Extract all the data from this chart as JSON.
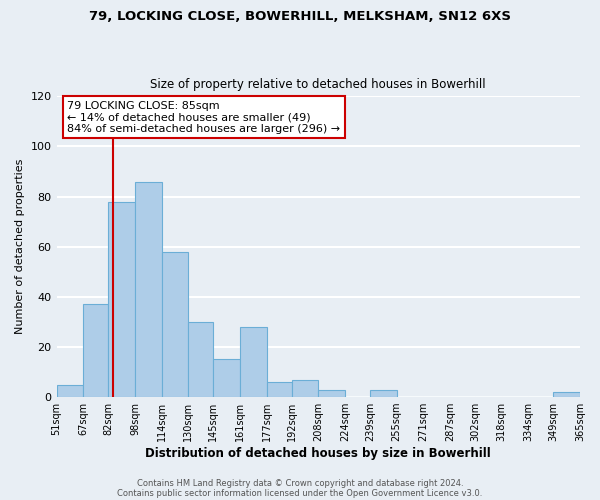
{
  "title1": "79, LOCKING CLOSE, BOWERHILL, MELKSHAM, SN12 6XS",
  "title2": "Size of property relative to detached houses in Bowerhill",
  "xlabel": "Distribution of detached houses by size in Bowerhill",
  "ylabel": "Number of detached properties",
  "footer1": "Contains HM Land Registry data © Crown copyright and database right 2024.",
  "footer2": "Contains public sector information licensed under the Open Government Licence v3.0.",
  "bar_left_edges": [
    51,
    67,
    82,
    98,
    114,
    130,
    145,
    161,
    177,
    192,
    208,
    224,
    239,
    255,
    271,
    287,
    302,
    318,
    334,
    349
  ],
  "bar_widths": [
    16,
    15,
    16,
    16,
    16,
    15,
    16,
    16,
    15,
    16,
    16,
    15,
    16,
    16,
    16,
    15,
    16,
    16,
    15,
    16
  ],
  "bar_heights": [
    5,
    37,
    78,
    86,
    58,
    30,
    15,
    28,
    6,
    7,
    3,
    0,
    3,
    0,
    0,
    0,
    0,
    0,
    0,
    2
  ],
  "bar_color": "#aecde8",
  "bar_edge_color": "#6baed6",
  "vline_x": 85,
  "vline_color": "#cc0000",
  "annotation_text_line1": "79 LOCKING CLOSE: 85sqm",
  "annotation_text_line2": "← 14% of detached houses are smaller (49)",
  "annotation_text_line3": "84% of semi-detached houses are larger (296) →",
  "annotation_box_color": "#ffffff",
  "annotation_border_color": "#cc0000",
  "ylim": [
    0,
    120
  ],
  "yticks": [
    0,
    20,
    40,
    60,
    80,
    100,
    120
  ],
  "tick_labels": [
    "51sqm",
    "67sqm",
    "82sqm",
    "98sqm",
    "114sqm",
    "130sqm",
    "145sqm",
    "161sqm",
    "177sqm",
    "192sqm",
    "208sqm",
    "224sqm",
    "239sqm",
    "255sqm",
    "271sqm",
    "287sqm",
    "302sqm",
    "318sqm",
    "334sqm",
    "349sqm",
    "365sqm"
  ],
  "background_color": "#e8eef4",
  "grid_color": "#ffffff"
}
